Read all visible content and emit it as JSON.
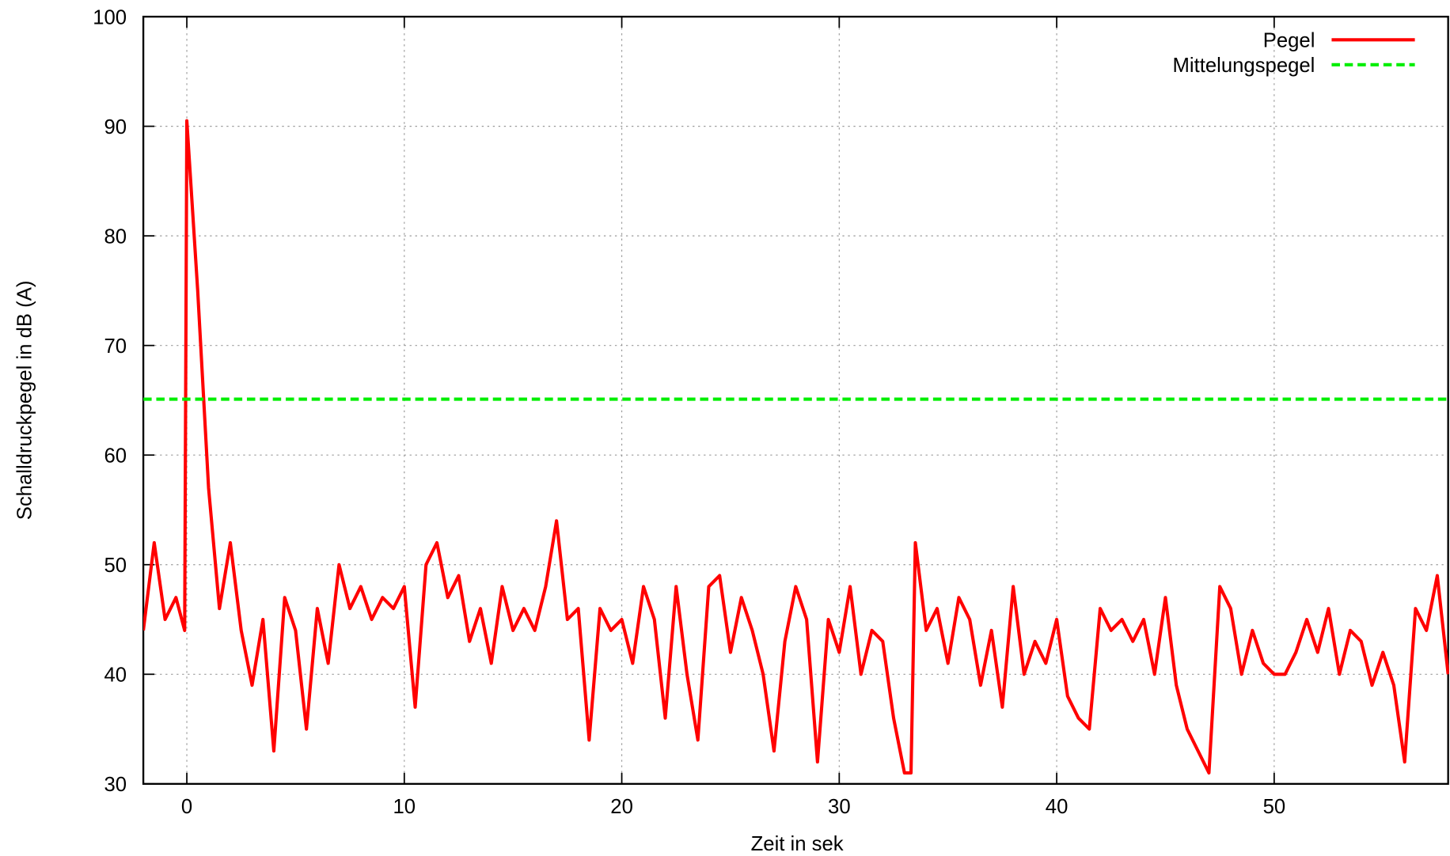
{
  "chart_data": {
    "type": "line",
    "xlabel": "Zeit in sek",
    "ylabel": "Schalldruckpegel in dB (A)",
    "xlim": [
      -2,
      58
    ],
    "ylim": [
      30,
      100
    ],
    "xticks": [
      0,
      10,
      20,
      30,
      40,
      50
    ],
    "yticks": [
      30,
      40,
      50,
      60,
      70,
      80,
      90,
      100
    ],
    "grid": true,
    "legend": "upper right",
    "series": [
      {
        "name": "Pegel",
        "color": "#ff0000",
        "dash": false,
        "x": [
          -2,
          -1.5,
          -1,
          -0.5,
          -0.1,
          0,
          0.5,
          1,
          1.5,
          2,
          2.5,
          3,
          3.5,
          4,
          4.5,
          5,
          5.5,
          6,
          6.5,
          7,
          7.5,
          8,
          8.5,
          9,
          9.5,
          10,
          10.5,
          11,
          11.5,
          12,
          12.5,
          13,
          13.5,
          14,
          14.5,
          15,
          15.5,
          16,
          16.5,
          17,
          17.5,
          18,
          18.5,
          19,
          19.5,
          20,
          20.5,
          21,
          21.5,
          22,
          22.5,
          23,
          23.5,
          24,
          24.5,
          25,
          25.5,
          26,
          26.5,
          27,
          27.5,
          28,
          28.5,
          29,
          29.5,
          30,
          30.5,
          31,
          31.5,
          32,
          32.5,
          33,
          33.3,
          33.5,
          34,
          34.5,
          35,
          35.5,
          36,
          36.5,
          37,
          37.5,
          38,
          38.5,
          39,
          39.5,
          40,
          40.5,
          41,
          41.5,
          42,
          42.5,
          43,
          43.5,
          44,
          44.5,
          45,
          45.5,
          46,
          46.5,
          47,
          47.5,
          48,
          48.5,
          49,
          49.5,
          50,
          50.5,
          51,
          51.5,
          52,
          52.5,
          53,
          53.5,
          54,
          54.5,
          55,
          55.5,
          56,
          56.5,
          57,
          57.5,
          58
        ],
        "values": [
          44,
          52,
          45,
          47,
          44,
          90.5,
          75,
          57,
          46,
          52,
          44,
          39,
          45,
          33,
          47,
          44,
          35,
          46,
          41,
          50,
          46,
          48,
          45,
          47,
          46,
          48,
          37,
          50,
          52,
          47,
          49,
          43,
          46,
          41,
          48,
          44,
          46,
          44,
          48,
          54,
          45,
          46,
          34,
          46,
          44,
          45,
          41,
          48,
          45,
          36,
          48,
          40,
          34,
          48,
          49,
          42,
          47,
          44,
          40,
          33,
          43,
          48,
          45,
          32,
          45,
          42,
          48,
          40,
          44,
          43,
          36,
          31,
          31,
          52,
          44,
          46,
          41,
          47,
          45,
          39,
          44,
          37,
          48,
          40,
          43,
          41,
          45,
          38,
          36,
          35,
          46,
          44,
          45,
          43,
          45,
          40,
          47,
          39,
          35,
          33,
          31,
          48,
          46,
          40,
          44,
          41,
          40,
          40,
          42,
          45,
          42,
          46,
          40,
          44,
          43,
          39,
          42,
          39,
          32,
          46,
          44,
          49,
          40
        ]
      },
      {
        "name": "Mittelungspegel",
        "color": "#00ee00",
        "dash": true,
        "x": [
          -2,
          58
        ],
        "values": [
          65.1,
          65.1
        ]
      }
    ]
  }
}
